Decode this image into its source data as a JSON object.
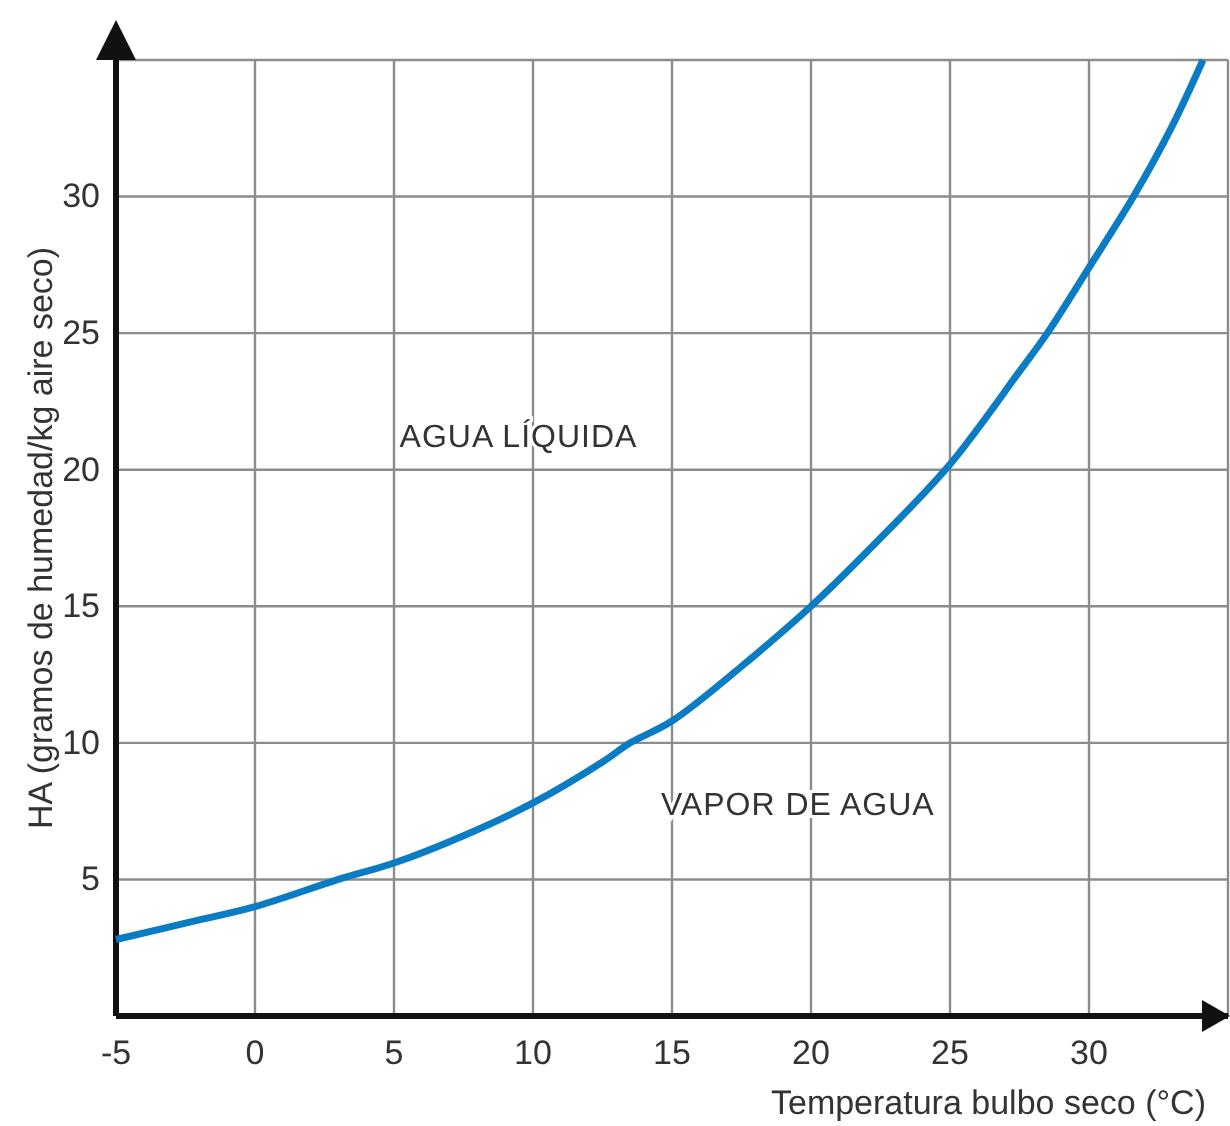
{
  "chart_data": {
    "type": "line",
    "xlabel": "Temperatura bulbo seco (°C)",
    "ylabel": "HA (gramos de humedad/kg aire seco)",
    "xlim": [
      -5,
      35
    ],
    "ylim": [
      0,
      35
    ],
    "xticks": [
      -5,
      0,
      5,
      10,
      15,
      20,
      25,
      30,
      {
        "value": 35,
        "label": null
      }
    ],
    "yticks": [
      {
        "value": 0,
        "label": null
      },
      5,
      10,
      15,
      20,
      25,
      30,
      {
        "value": 35,
        "label": null
      }
    ],
    "grid": true,
    "marker": "none",
    "line_style": "solid",
    "annotations": [
      "AGUA LÍQUIDA",
      "VAPOR DE AGUA"
    ],
    "series": [
      {
        "color": "#0a7cc4",
        "x": [
          -5,
          -2.5,
          0,
          3,
          5,
          7.5,
          10,
          12.5,
          13.5,
          15,
          17.5,
          20,
          22.5,
          25,
          27.5,
          28.5,
          30,
          31.6,
          33,
          34.1
        ],
        "values": [
          2.8,
          3.4,
          4.0,
          5.0,
          5.6,
          6.6,
          7.8,
          9.3,
          10.0,
          10.8,
          12.8,
          15.0,
          17.5,
          20.2,
          23.6,
          25.0,
          27.4,
          30.0,
          32.6,
          35.0
        ]
      }
    ]
  }
}
